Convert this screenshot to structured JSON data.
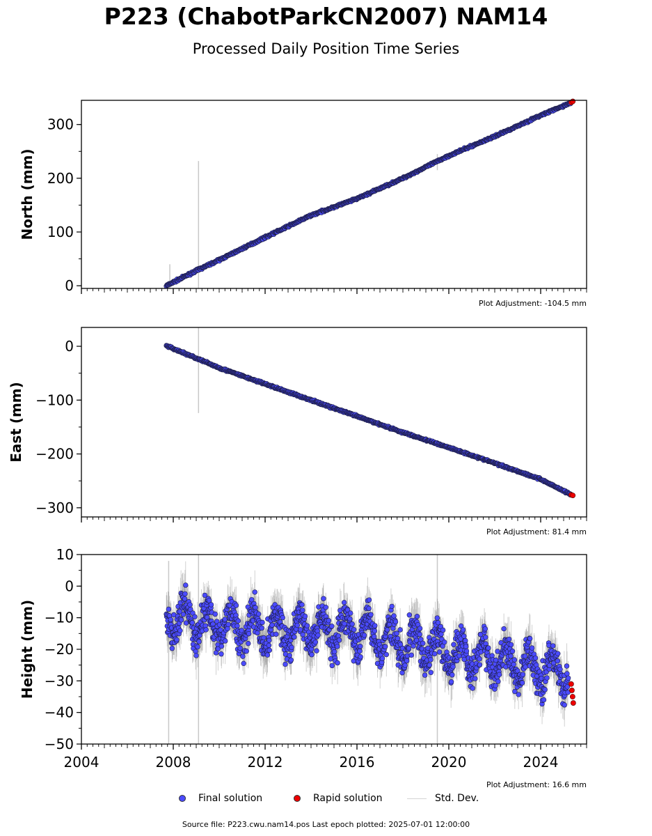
{
  "title": "P223 (ChabotParkCN2007) NAM14",
  "subtitle": "Processed Daily Position Time Series",
  "legend": {
    "final": "Final solution",
    "rapid": "Rapid solution",
    "stddev": "Std. Dev."
  },
  "source_text": "Source file: P223.cwu.nam14.pos  Last epoch plotted: 2025-07-01 12:00:00",
  "colors": {
    "final": "#4b4bff",
    "rapid": "#ee0000",
    "stddev": "#c8c8c8"
  },
  "chart_data": [
    {
      "type": "scatter",
      "ylabel": "North (mm)",
      "annotation": "Plot Adjustment: -104.5 mm",
      "xlim": [
        2004,
        2026
      ],
      "ylim": [
        -5,
        345
      ],
      "yticks": [
        0,
        100,
        200,
        300
      ],
      "ytick_labels": [
        "0",
        "100",
        "200",
        "300"
      ],
      "grid": false,
      "series": [
        {
          "name": "Final solution",
          "x": [
            2007.7,
            2009.0,
            2010.0,
            2012.0,
            2014.0,
            2016.0,
            2018.0,
            2020.0,
            2022.0,
            2024.0,
            2025.3
          ],
          "y": [
            0,
            28,
            48,
            90,
            131,
            162,
            200,
            242,
            278,
            317,
            340
          ]
        },
        {
          "name": "Rapid solution",
          "x": [
            2025.33,
            2025.4
          ],
          "y": [
            341,
            343
          ]
        }
      ],
      "stddev_spikes": [
        {
          "x": 2007.85,
          "lo": -5,
          "hi": 40
        },
        {
          "x": 2009.1,
          "lo": -5,
          "hi": 232
        },
        {
          "x": 2019.5,
          "lo": 215,
          "hi": 245
        }
      ]
    },
    {
      "type": "scatter",
      "ylabel": "East (mm)",
      "annotation": "Plot Adjustment: 81.4 mm",
      "xlim": [
        2004,
        2026
      ],
      "ylim": [
        -317,
        35
      ],
      "yticks": [
        0,
        -100,
        -200,
        -300
      ],
      "ytick_labels": [
        "0",
        "−100",
        "−200",
        "−300"
      ],
      "grid": false,
      "series": [
        {
          "name": "Final solution",
          "x": [
            2007.7,
            2009.0,
            2010.0,
            2012.0,
            2014.0,
            2016.0,
            2018.0,
            2020.0,
            2022.0,
            2024.0,
            2025.3
          ],
          "y": [
            1,
            -22,
            -40,
            -70,
            -100,
            -130,
            -160,
            -188,
            -217,
            -247,
            -275
          ]
        },
        {
          "name": "Rapid solution",
          "x": [
            2025.33,
            2025.4
          ],
          "y": [
            -276,
            -277
          ]
        }
      ],
      "stddev_spikes": [
        {
          "x": 2009.1,
          "lo": -124,
          "hi": 35
        }
      ]
    },
    {
      "type": "scatter",
      "ylabel": "Height (mm)",
      "annotation": "Plot Adjustment: 16.6 mm",
      "xlim": [
        2004,
        2026
      ],
      "ylim": [
        -50,
        10
      ],
      "yticks": [
        10,
        0,
        -10,
        -20,
        -30,
        -40,
        -50
      ],
      "ytick_labels": [
        "10",
        "0",
        "−10",
        "−20",
        "−30",
        "−40",
        "−50"
      ],
      "xticks": [
        2004,
        2008,
        2012,
        2016,
        2020,
        2024
      ],
      "xtick_labels": [
        "2004",
        "2008",
        "2012",
        "2016",
        "2020",
        "2024"
      ],
      "grid": false,
      "trend": {
        "x": [
          2007.7,
          2012.0,
          2016.0,
          2020.0,
          2025.3
        ],
        "y": [
          -10,
          -14,
          -14,
          -21,
          -28
        ]
      },
      "series": [
        {
          "name": "Final solution",
          "x": [
            2007.7,
            2008.0,
            2009.0,
            2010.0,
            2011.0,
            2012.0,
            2013.0,
            2014.0,
            2015.0,
            2016.0,
            2017.0,
            2018.0,
            2019.0,
            2020.0,
            2021.0,
            2022.0,
            2023.0,
            2024.0,
            2025.2
          ],
          "y": [
            -10,
            -12,
            -15,
            -13,
            -16,
            -14,
            -13,
            -14,
            -12,
            -15,
            -20,
            -22,
            -25,
            -22,
            -23,
            -24,
            -25,
            -29,
            -35
          ]
        },
        {
          "name": "Rapid solution",
          "x": [
            2025.33,
            2025.36,
            2025.39,
            2025.42
          ],
          "y": [
            -31,
            -33,
            -35,
            -37
          ]
        }
      ],
      "stddev_spikes": [
        {
          "x": 2007.8,
          "lo": -50,
          "hi": 8
        },
        {
          "x": 2009.1,
          "lo": -50,
          "hi": 10
        },
        {
          "x": 2019.5,
          "lo": -50,
          "hi": 10
        }
      ]
    }
  ]
}
